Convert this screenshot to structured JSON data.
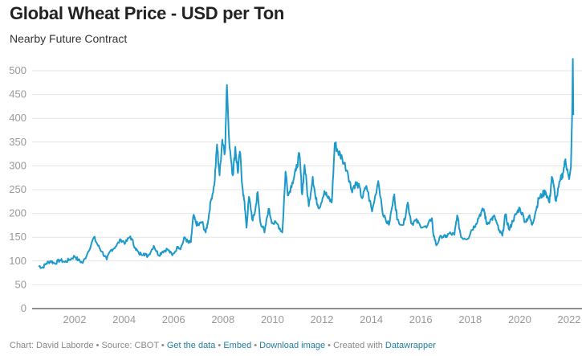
{
  "chart_data": {
    "type": "line",
    "title": "Global Wheat Price - USD per Ton",
    "subtitle": "Nearby Future Contract",
    "xlabel": "",
    "ylabel": "",
    "ylim": [
      0,
      500
    ],
    "xlim": [
      2000.5,
      2022.3
    ],
    "grid": true,
    "y_ticks": [
      "0",
      "50",
      "100",
      "150",
      "200",
      "250",
      "300",
      "350",
      "400",
      "450",
      "500"
    ],
    "x_ticks": [
      "2002",
      "2004",
      "2006",
      "2008",
      "2010",
      "2012",
      "2014",
      "2016",
      "2018",
      "2020",
      "2022"
    ],
    "color": "#1d9ac9",
    "series": [
      {
        "name": "Wheat price (USD/ton)",
        "points": [
          [
            2000.54,
            90
          ],
          [
            2000.7,
            86
          ],
          [
            2000.85,
            95
          ],
          [
            2001.03,
            100
          ],
          [
            2001.2,
            95
          ],
          [
            2001.4,
            102
          ],
          [
            2001.6,
            98
          ],
          [
            2001.8,
            103
          ],
          [
            2002.0,
            110
          ],
          [
            2002.15,
            102
          ],
          [
            2002.33,
            96
          ],
          [
            2002.55,
            120
          ],
          [
            2002.78,
            150
          ],
          [
            2002.95,
            132
          ],
          [
            2003.1,
            120
          ],
          [
            2003.3,
            103
          ],
          [
            2003.45,
            122
          ],
          [
            2003.65,
            130
          ],
          [
            2003.87,
            145
          ],
          [
            2004.05,
            138
          ],
          [
            2004.25,
            152
          ],
          [
            2004.45,
            128
          ],
          [
            2004.6,
            115
          ],
          [
            2004.8,
            116
          ],
          [
            2004.96,
            110
          ],
          [
            2005.2,
            132
          ],
          [
            2005.4,
            112
          ],
          [
            2005.55,
            120
          ],
          [
            2005.75,
            125
          ],
          [
            2005.95,
            112
          ],
          [
            2006.18,
            130
          ],
          [
            2006.3,
            128
          ],
          [
            2006.45,
            150
          ],
          [
            2006.6,
            138
          ],
          [
            2006.7,
            140
          ],
          [
            2006.8,
            195
          ],
          [
            2006.9,
            180
          ],
          [
            2007.0,
            175
          ],
          [
            2007.15,
            182
          ],
          [
            2007.3,
            160
          ],
          [
            2007.4,
            185
          ],
          [
            2007.5,
            225
          ],
          [
            2007.65,
            260
          ],
          [
            2007.76,
            345
          ],
          [
            2007.86,
            280
          ],
          [
            2007.97,
            355
          ],
          [
            2008.08,
            330
          ],
          [
            2008.16,
            470
          ],
          [
            2008.24,
            360
          ],
          [
            2008.4,
            280
          ],
          [
            2008.5,
            340
          ],
          [
            2008.6,
            285
          ],
          [
            2008.68,
            330
          ],
          [
            2008.8,
            250
          ],
          [
            2008.9,
            205
          ],
          [
            2008.95,
            170
          ],
          [
            2009.05,
            235
          ],
          [
            2009.2,
            185
          ],
          [
            2009.3,
            205
          ],
          [
            2009.4,
            245
          ],
          [
            2009.5,
            185
          ],
          [
            2009.68,
            160
          ],
          [
            2009.84,
            210
          ],
          [
            2010.0,
            180
          ],
          [
            2010.2,
            178
          ],
          [
            2010.4,
            160
          ],
          [
            2010.53,
            288
          ],
          [
            2010.64,
            238
          ],
          [
            2010.8,
            265
          ],
          [
            2010.95,
            290
          ],
          [
            2011.09,
            325
          ],
          [
            2011.2,
            240
          ],
          [
            2011.3,
            302
          ],
          [
            2011.47,
            215
          ],
          [
            2011.63,
            277
          ],
          [
            2011.75,
            230
          ],
          [
            2011.9,
            212
          ],
          [
            2012.1,
            247
          ],
          [
            2012.25,
            232
          ],
          [
            2012.4,
            223
          ],
          [
            2012.52,
            348
          ],
          [
            2012.65,
            330
          ],
          [
            2012.82,
            316
          ],
          [
            2013.04,
            288
          ],
          [
            2013.2,
            249
          ],
          [
            2013.35,
            262
          ],
          [
            2013.47,
            260
          ],
          [
            2013.63,
            232
          ],
          [
            2013.8,
            258
          ],
          [
            2014.03,
            204
          ],
          [
            2014.28,
            268
          ],
          [
            2014.5,
            193
          ],
          [
            2014.71,
            176
          ],
          [
            2014.93,
            240
          ],
          [
            2015.04,
            187
          ],
          [
            2015.3,
            176
          ],
          [
            2015.47,
            223
          ],
          [
            2015.63,
            178
          ],
          [
            2015.8,
            185
          ],
          [
            2015.96,
            176
          ],
          [
            2016.23,
            170
          ],
          [
            2016.45,
            190
          ],
          [
            2016.5,
            159
          ],
          [
            2016.63,
            133
          ],
          [
            2016.82,
            153
          ],
          [
            2017.0,
            150
          ],
          [
            2017.15,
            158
          ],
          [
            2017.36,
            155
          ],
          [
            2017.47,
            196
          ],
          [
            2017.63,
            150
          ],
          [
            2017.9,
            147
          ],
          [
            2018.05,
            165
          ],
          [
            2018.23,
            178
          ],
          [
            2018.39,
            198
          ],
          [
            2018.55,
            209
          ],
          [
            2018.66,
            178
          ],
          [
            2018.85,
            188
          ],
          [
            2018.99,
            193
          ],
          [
            2019.15,
            165
          ],
          [
            2019.3,
            153
          ],
          [
            2019.42,
            198
          ],
          [
            2019.58,
            165
          ],
          [
            2019.72,
            185
          ],
          [
            2019.85,
            198
          ],
          [
            2020.0,
            212
          ],
          [
            2020.23,
            183
          ],
          [
            2020.38,
            195
          ],
          [
            2020.5,
            176
          ],
          [
            2020.65,
            205
          ],
          [
            2020.77,
            232
          ],
          [
            2020.9,
            238
          ],
          [
            2021.04,
            247
          ],
          [
            2021.2,
            223
          ],
          [
            2021.3,
            277
          ],
          [
            2021.47,
            226
          ],
          [
            2021.63,
            268
          ],
          [
            2021.75,
            285
          ],
          [
            2021.85,
            314
          ],
          [
            2021.95,
            285
          ],
          [
            2022.0,
            272
          ],
          [
            2022.07,
            298
          ],
          [
            2022.12,
            407
          ],
          [
            2022.15,
            525
          ],
          [
            2022.17,
            407
          ]
        ]
      }
    ]
  },
  "footer": {
    "chart_by": "Chart: David Laborde",
    "source": "Source: CBOT",
    "get_data": "Get the data",
    "embed": "Embed",
    "download": "Download image",
    "created_with": "Created with",
    "datawrapper": "Datawrapper",
    "sep": " • "
  }
}
